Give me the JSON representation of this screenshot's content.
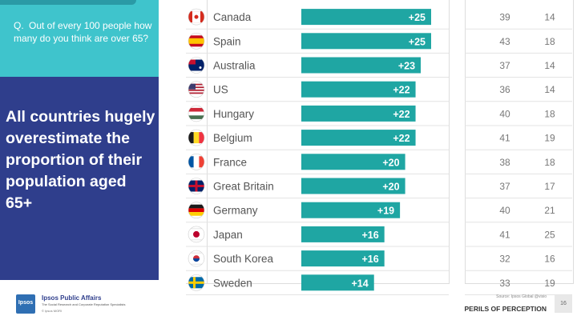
{
  "question": {
    "marker": "Q.",
    "text": "Out of every 100 people how many do you think are over 65?"
  },
  "headline": "All countries hugely overestimate the proportion of their population aged 65+",
  "footer": {
    "logo_text": "Ipsos",
    "brand": "Ipsos Public Affairs",
    "brand_sub": "The Social Research and Corporate Reputation Specialists",
    "copyright": "© Ipsos MORI",
    "source": "Source: Ipsos Global @visio",
    "series_title": "PERILS OF PERCEPTION",
    "page_number": "16"
  },
  "colors": {
    "bar": "#1fa6a3",
    "question_panel": "#3fc4cc",
    "headline_panel": "#2f3e8c"
  },
  "chart_data": {
    "type": "bar",
    "orientation": "horizontal",
    "categories": [
      "Canada",
      "Spain",
      "Australia",
      "US",
      "Hungary",
      "Belgium",
      "France",
      "Great Britain",
      "Germany",
      "Japan",
      "South Korea",
      "Sweden"
    ],
    "flags": [
      "canada-flag-icon",
      "spain-flag-icon",
      "australia-flag-icon",
      "us-flag-icon",
      "hungary-flag-icon",
      "belgium-flag-icon",
      "france-flag-icon",
      "great-britain-flag-icon",
      "germany-flag-icon",
      "japan-flag-icon",
      "south-korea-flag-icon",
      "sweden-flag-icon"
    ],
    "values": [
      25,
      25,
      23,
      22,
      22,
      22,
      20,
      20,
      19,
      16,
      16,
      14
    ],
    "value_labels": [
      "+25",
      "+25",
      "+23",
      "+22",
      "+22",
      "+22",
      "+20",
      "+20",
      "+19",
      "+16",
      "+16",
      "+14"
    ],
    "guess": [
      39,
      43,
      37,
      36,
      40,
      41,
      38,
      37,
      40,
      41,
      32,
      33
    ],
    "actual": [
      14,
      18,
      14,
      14,
      18,
      19,
      18,
      17,
      21,
      25,
      16,
      19
    ],
    "xlim": [
      0,
      25
    ]
  }
}
